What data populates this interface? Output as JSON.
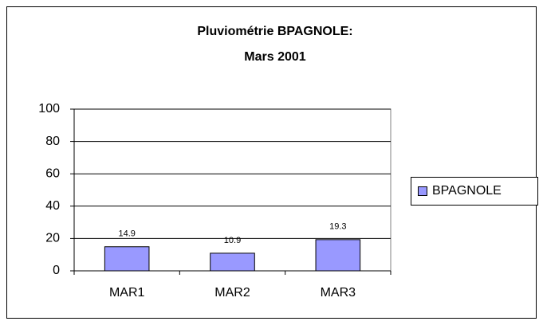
{
  "chart_data": {
    "type": "bar",
    "title": [
      "Pluviométrie BPAGNOLE:",
      "Mars 2001"
    ],
    "categories": [
      "MAR1",
      "MAR2",
      "MAR3"
    ],
    "series": [
      {
        "name": "BPAGNOLE",
        "color": "#9999ff",
        "values": [
          14.9,
          10.9,
          19.3
        ]
      }
    ],
    "ylim": [
      0,
      100
    ],
    "yticks": [
      0,
      20,
      40,
      60,
      80,
      100
    ],
    "grid": true,
    "legend": "right",
    "data_labels": true
  }
}
